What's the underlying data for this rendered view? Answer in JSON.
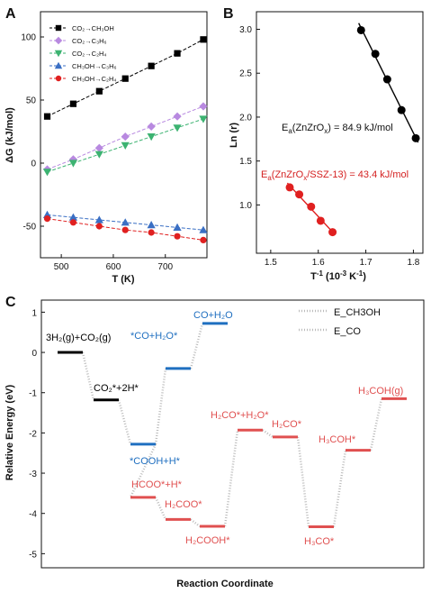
{
  "chart_data": [
    {
      "panel": "A",
      "type": "line",
      "xlabel": "T (K)",
      "ylabel": "ΔG (kJ/mol)",
      "xlim": [
        460,
        780
      ],
      "ylim": [
        -75,
        120
      ],
      "xticks": [
        500,
        600,
        700
      ],
      "yticks": [
        -50,
        0,
        50,
        100
      ],
      "legend_position": "top-left",
      "x": [
        473,
        523,
        573,
        623,
        673,
        723,
        773
      ],
      "series": [
        {
          "name": "CO₂→CH₃OH",
          "color": "#000000",
          "marker": "square",
          "values": [
            37,
            47,
            57,
            67,
            77,
            87,
            98
          ]
        },
        {
          "name": "CO₂→C₃H₆",
          "color": "#b889e0",
          "marker": "diamond",
          "values": [
            -5,
            3,
            12,
            21,
            29,
            37,
            45
          ]
        },
        {
          "name": "CO₂→C₂H₄",
          "color": "#3cb371",
          "marker": "triangle-down",
          "values": [
            -7,
            0,
            7,
            14,
            21,
            28,
            35
          ]
        },
        {
          "name": "CH₃OH→C₃H₆",
          "color": "#3a6fc4",
          "marker": "triangle-up",
          "values": [
            -41,
            -43,
            -45,
            -47,
            -49,
            -51,
            -53
          ]
        },
        {
          "name": "CH₃OH→C₂H₄",
          "color": "#e02020",
          "marker": "circle",
          "values": [
            -44,
            -47,
            -50,
            -53,
            -55,
            -58,
            -61
          ]
        }
      ]
    },
    {
      "panel": "B",
      "type": "scatter",
      "xlabel": "T⁻¹ (10⁻³ K⁻¹)",
      "ylabel": "Ln (r)",
      "xlim": [
        1.47,
        1.82
      ],
      "ylim": [
        0.45,
        3.2
      ],
      "xticks": [
        1.5,
        1.6,
        1.7,
        1.8
      ],
      "yticks": [
        1.0,
        1.5,
        2.0,
        2.5,
        3.0
      ],
      "series": [
        {
          "name": "ZnZrOₓ",
          "color": "#000000",
          "x": [
            1.69,
            1.72,
            1.745,
            1.775,
            1.805
          ],
          "y": [
            2.99,
            2.72,
            2.43,
            2.08,
            1.76
          ]
        },
        {
          "name": "ZnZrOₓ/SSZ-13",
          "color": "#e02020",
          "x": [
            1.54,
            1.56,
            1.585,
            1.605,
            1.63
          ],
          "y": [
            1.2,
            1.12,
            0.98,
            0.82,
            0.69
          ]
        }
      ],
      "annotations": [
        {
          "text": "E",
          "sub": "a",
          "rest": "(ZnZrO",
          "sub2": "x",
          "tail": ") = 84.9 kJ/mol",
          "color": "#111111"
        },
        {
          "text": "E",
          "sub": "a",
          "rest": "(ZnZrO",
          "sub2": "x",
          "tail": "/SSZ-13) = 43.4 kJ/mol",
          "color": "#d42020"
        }
      ]
    },
    {
      "panel": "C",
      "type": "line",
      "xlabel": "Reaction Coordinate",
      "ylabel": "Relative Energy (eV)",
      "ylim": [
        -5.35,
        1.3
      ],
      "yticks": [
        1,
        0,
        -1,
        -2,
        -3,
        -4,
        -5
      ],
      "legend_position": "top-right",
      "legend": [
        {
          "name": "E_CH3OH",
          "style": "dotted"
        },
        {
          "name": "E_CO",
          "style": "dotted"
        }
      ],
      "levels": [
        {
          "label": "3H₂(g)+CO₂(g)",
          "energy": 0.0,
          "color": "#000000"
        },
        {
          "label": "CO₂*+2H*",
          "energy": -1.18,
          "color": "#000000"
        },
        {
          "label": "*COOH+H*",
          "energy": -2.28,
          "color": "#1f6fc0"
        },
        {
          "label": "*CO+H₂O*",
          "energy": -0.4,
          "color": "#1f6fc0"
        },
        {
          "label": "CO+H₂O",
          "energy": 0.72,
          "color": "#1f6fc0"
        },
        {
          "label": "HCOO*+H*",
          "energy": -3.6,
          "color": "#e05050"
        },
        {
          "label": "H₂COO*",
          "energy": -4.15,
          "color": "#e05050"
        },
        {
          "label": "H₂COOH*",
          "energy": -4.32,
          "color": "#e05050"
        },
        {
          "label": "H₂CO*+H₂O*",
          "energy": -1.93,
          "color": "#e05050"
        },
        {
          "label": "H₂CO*",
          "energy": -2.1,
          "color": "#e05050"
        },
        {
          "label": "H₃CO*",
          "energy": -4.33,
          "color": "#e05050"
        },
        {
          "label": "H₃COH*",
          "energy": -2.43,
          "color": "#e05050"
        },
        {
          "label": "H₃COH(g)",
          "energy": -1.15,
          "color": "#e05050"
        }
      ]
    }
  ]
}
